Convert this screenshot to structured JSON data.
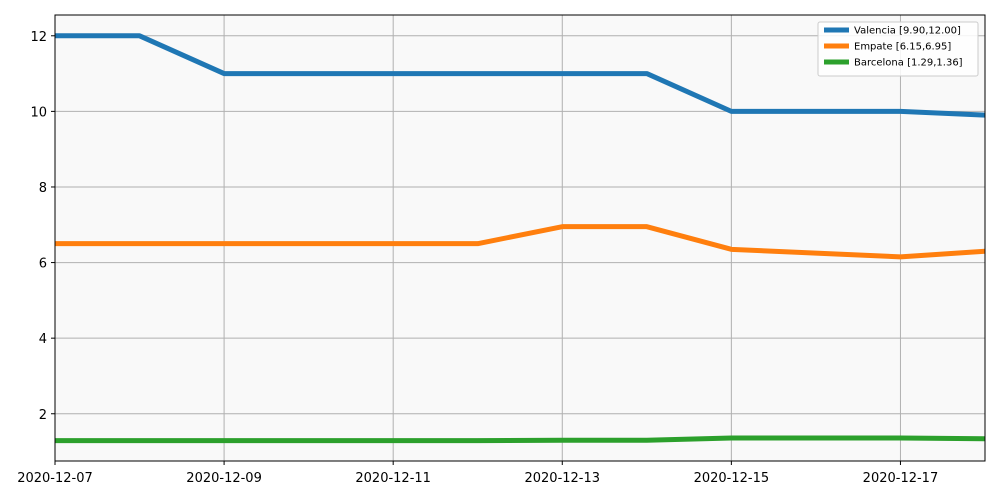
{
  "chart_data": {
    "type": "line",
    "title": "",
    "xlabel": "",
    "ylabel": "",
    "x_type": "date",
    "xlim": [
      "2020-12-07",
      "2020-12-18"
    ],
    "ylim": [
      0.75,
      12.55
    ],
    "x_ticks": [
      "2020-12-07",
      "2020-12-09",
      "2020-12-11",
      "2020-12-13",
      "2020-12-15",
      "2020-12-17"
    ],
    "y_ticks": [
      2,
      4,
      6,
      8,
      10,
      12
    ],
    "grid": true,
    "legend_position": "top-right",
    "plot_background": "#f9f9f9",
    "x": [
      "2020-12-07",
      "2020-12-08",
      "2020-12-09",
      "2020-12-10",
      "2020-12-11",
      "2020-12-12",
      "2020-12-13",
      "2020-12-14",
      "2020-12-15",
      "2020-12-16",
      "2020-12-17",
      "2020-12-18"
    ],
    "series": [
      {
        "name": "Valencia [9.90,12.00]",
        "color": "#1f77b4",
        "values": [
          12.0,
          12.0,
          11.0,
          11.0,
          11.0,
          11.0,
          11.0,
          11.0,
          10.0,
          10.0,
          10.0,
          9.9
        ]
      },
      {
        "name": "Empate [6.15,6.95]",
        "color": "#ff7f0e",
        "values": [
          6.5,
          6.5,
          6.5,
          6.5,
          6.5,
          6.5,
          6.95,
          6.95,
          6.35,
          6.25,
          6.15,
          6.3
        ]
      },
      {
        "name": "Barcelona [1.29,1.36]",
        "color": "#2ca02c",
        "values": [
          1.29,
          1.29,
          1.29,
          1.29,
          1.29,
          1.29,
          1.3,
          1.3,
          1.36,
          1.36,
          1.36,
          1.34
        ]
      }
    ]
  }
}
